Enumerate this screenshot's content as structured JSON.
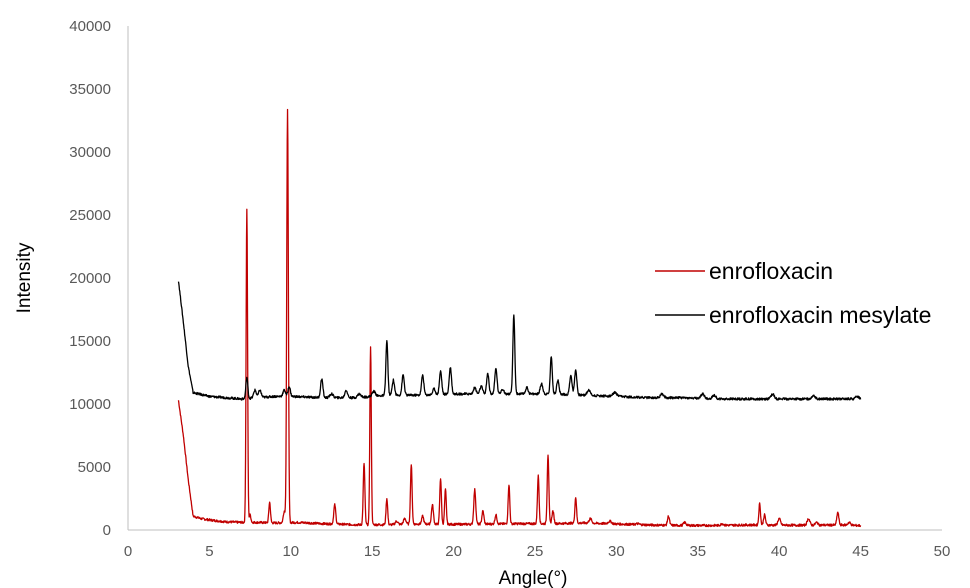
{
  "chart_data": {
    "type": "line",
    "xlabel": "Angle(°)",
    "ylabel": "Intensity",
    "xlim": [
      0,
      50
    ],
    "ylim": [
      0,
      40000
    ],
    "x_ticks": [
      0,
      5,
      10,
      15,
      20,
      25,
      30,
      35,
      40,
      45,
      50
    ],
    "y_ticks": [
      0,
      5000,
      10000,
      15000,
      20000,
      25000,
      30000,
      35000,
      40000
    ],
    "grid": false,
    "legend": {
      "position": "right"
    },
    "series": [
      {
        "name": "enrofloxacin",
        "color": "#c00000",
        "baseline": [
          [
            3.1,
            10300
          ],
          [
            3.4,
            7500
          ],
          [
            3.7,
            4000
          ],
          [
            4.0,
            1100
          ],
          [
            4.5,
            900
          ],
          [
            5,
            800
          ],
          [
            6,
            650
          ],
          [
            7,
            600
          ],
          [
            8,
            600
          ],
          [
            9,
            560
          ],
          [
            10.5,
            600
          ],
          [
            12,
            500
          ],
          [
            14,
            420
          ],
          [
            16,
            420
          ],
          [
            18,
            480
          ],
          [
            20,
            450
          ],
          [
            22,
            470
          ],
          [
            24,
            500
          ],
          [
            26,
            500
          ],
          [
            28,
            560
          ],
          [
            30,
            480
          ],
          [
            32,
            400
          ],
          [
            34,
            360
          ],
          [
            36,
            360
          ],
          [
            38,
            400
          ],
          [
            40,
            380
          ],
          [
            42,
            380
          ],
          [
            44,
            400
          ],
          [
            45,
            350
          ]
        ],
        "peaks": [
          [
            7.3,
            25500,
            0.045
          ],
          [
            7.5,
            1200,
            0.05
          ],
          [
            8.7,
            2200,
            0.05
          ],
          [
            9.8,
            33300,
            0.05
          ],
          [
            9.6,
            1500,
            0.06
          ],
          [
            12.7,
            2000,
            0.06
          ],
          [
            14.5,
            5300,
            0.05
          ],
          [
            14.9,
            14500,
            0.045
          ],
          [
            15.9,
            2500,
            0.05
          ],
          [
            16.5,
            700,
            0.08
          ],
          [
            17.0,
            900,
            0.08
          ],
          [
            17.4,
            5200,
            0.05
          ],
          [
            18.1,
            1100,
            0.06
          ],
          [
            18.7,
            2000,
            0.06
          ],
          [
            19.2,
            4100,
            0.05
          ],
          [
            19.5,
            3200,
            0.05
          ],
          [
            21.3,
            3200,
            0.06
          ],
          [
            21.8,
            1500,
            0.06
          ],
          [
            22.6,
            1200,
            0.06
          ],
          [
            23.4,
            3600,
            0.05
          ],
          [
            25.2,
            4300,
            0.05
          ],
          [
            25.8,
            6000,
            0.05
          ],
          [
            26.1,
            1500,
            0.06
          ],
          [
            27.5,
            2600,
            0.05
          ],
          [
            28.4,
            900,
            0.08
          ],
          [
            29.6,
            700,
            0.1
          ],
          [
            31.3,
            500,
            0.1
          ],
          [
            33.2,
            1100,
            0.06
          ],
          [
            34.2,
            600,
            0.08
          ],
          [
            36.5,
            500,
            0.08
          ],
          [
            38.8,
            2100,
            0.05
          ],
          [
            39.1,
            1200,
            0.06
          ],
          [
            40.0,
            900,
            0.08
          ],
          [
            41.8,
            900,
            0.08
          ],
          [
            42.3,
            600,
            0.08
          ],
          [
            43.6,
            1400,
            0.06
          ],
          [
            44.3,
            600,
            0.08
          ]
        ]
      },
      {
        "name": "enrofloxacin mesylate",
        "color": "#000000",
        "baseline": [
          [
            3.1,
            19800
          ],
          [
            3.4,
            16500
          ],
          [
            3.7,
            13000
          ],
          [
            4.0,
            10900
          ],
          [
            5,
            10600
          ],
          [
            6,
            10500
          ],
          [
            7,
            10400
          ],
          [
            8,
            10500
          ],
          [
            9,
            10600
          ],
          [
            10,
            10600
          ],
          [
            12,
            10500
          ],
          [
            14,
            10500
          ],
          [
            16,
            10700
          ],
          [
            18,
            10700
          ],
          [
            20,
            10800
          ],
          [
            22,
            10800
          ],
          [
            24,
            10800
          ],
          [
            26,
            10800
          ],
          [
            28,
            10700
          ],
          [
            30,
            10600
          ],
          [
            32,
            10500
          ],
          [
            34,
            10500
          ],
          [
            36,
            10400
          ],
          [
            38,
            10400
          ],
          [
            40,
            10400
          ],
          [
            42,
            10400
          ],
          [
            44,
            10400
          ],
          [
            45,
            10400
          ]
        ],
        "peaks": [
          [
            7.3,
            12100,
            0.06
          ],
          [
            7.8,
            11100,
            0.08
          ],
          [
            8.1,
            11100,
            0.08
          ],
          [
            9.6,
            11100,
            0.08
          ],
          [
            9.9,
            11400,
            0.07
          ],
          [
            11.9,
            12000,
            0.07
          ],
          [
            12.5,
            10800,
            0.1
          ],
          [
            13.4,
            11100,
            0.08
          ],
          [
            14.2,
            10800,
            0.1
          ],
          [
            15.1,
            11000,
            0.1
          ],
          [
            15.9,
            15000,
            0.06
          ],
          [
            16.3,
            11900,
            0.07
          ],
          [
            16.9,
            12300,
            0.07
          ],
          [
            18.1,
            12300,
            0.07
          ],
          [
            18.8,
            11200,
            0.08
          ],
          [
            19.2,
            12600,
            0.07
          ],
          [
            19.8,
            12900,
            0.07
          ],
          [
            21.3,
            11300,
            0.08
          ],
          [
            21.7,
            11400,
            0.08
          ],
          [
            22.1,
            12400,
            0.07
          ],
          [
            22.6,
            12800,
            0.07
          ],
          [
            23.0,
            11200,
            0.08
          ],
          [
            23.7,
            17000,
            0.06
          ],
          [
            24.5,
            11300,
            0.08
          ],
          [
            25.4,
            11600,
            0.08
          ],
          [
            26.0,
            13800,
            0.06
          ],
          [
            26.4,
            11900,
            0.07
          ],
          [
            27.2,
            12300,
            0.07
          ],
          [
            27.5,
            12700,
            0.07
          ],
          [
            28.3,
            11100,
            0.1
          ],
          [
            29.9,
            10900,
            0.12
          ],
          [
            32.8,
            10800,
            0.1
          ],
          [
            35.3,
            10800,
            0.1
          ],
          [
            36.0,
            10700,
            0.1
          ],
          [
            39.6,
            10800,
            0.1
          ],
          [
            42.1,
            10700,
            0.1
          ],
          [
            44.8,
            10600,
            0.1
          ]
        ]
      }
    ]
  }
}
